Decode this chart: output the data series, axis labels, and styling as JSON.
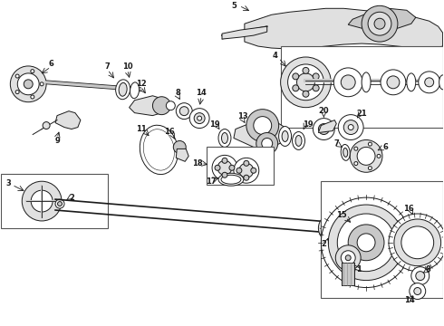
{
  "bg_color": "#ffffff",
  "line_color": "#1a1a1a",
  "gray_fill": "#c8c8c8",
  "light_gray": "#e0e0e0",
  "figsize": [
    4.9,
    3.6
  ],
  "dpi": 100
}
